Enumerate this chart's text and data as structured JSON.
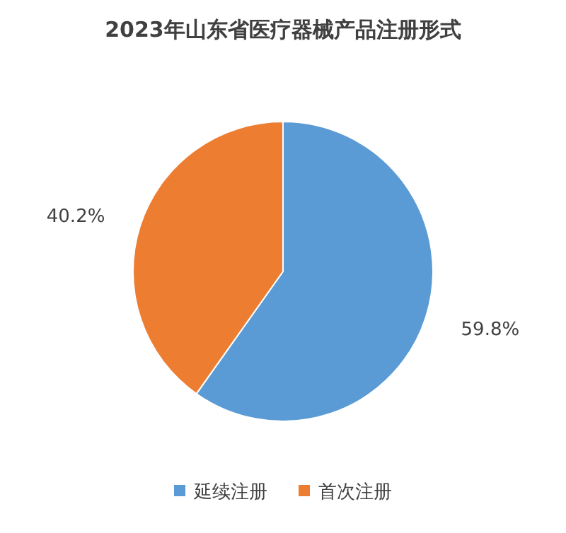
{
  "chart_data": {
    "type": "pie",
    "title": "2023年山东省医疗器械产品注册形式",
    "categories": [
      "延续注册",
      "首次注册"
    ],
    "values": [
      59.8,
      40.2
    ],
    "colors": [
      "#5b9bd5",
      "#ed7d31"
    ],
    "value_labels": [
      "59.8%",
      "40.2%"
    ],
    "legend": "bottom"
  }
}
